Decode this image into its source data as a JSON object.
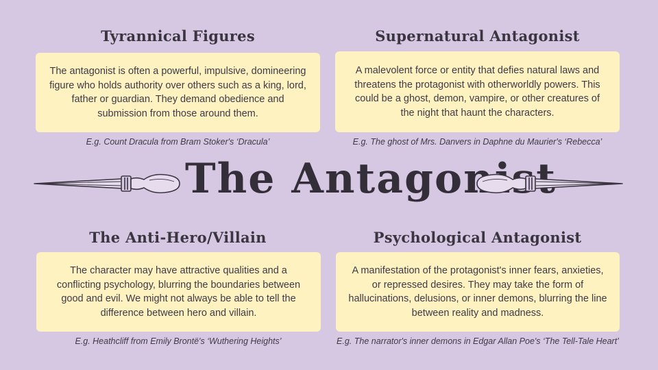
{
  "title": "The Antagonist",
  "sections": [
    {
      "heading": "Tyrannical Figures",
      "body": "The antagonist is often a powerful, impulsive, domineering figure who holds authority over others such as a king, lord, father or guardian. They demand obedience and submission from those around them.",
      "example": "E.g. Count Dracula from Bram Stoker's ‘Dracula’"
    },
    {
      "heading": "Supernatural Antagonist",
      "body": "A malevolent force or entity that defies natural laws and threatens the protagonist with otherworldly powers. This could be a ghost, demon, vampire, or other creatures of the night that haunt the characters.",
      "example": "E.g. The ghost of Mrs. Danvers in Daphne du Maurier's ‘Rebecca’"
    },
    {
      "heading": "The Anti-Hero/Villain",
      "body": "The character may have attractive qualities and  a conflicting psychology, blurring the boundaries between good and evil. We might not always be able to tell the difference between hero and villain.",
      "example": "E.g. Heathcliff from Emily Brontë's ‘Wuthering Heights’"
    },
    {
      "heading": "Psychological Antagonist",
      "body": "A manifestation of the protagonist's inner fears, anxieties, or repressed desires. They may take the form of hallucinations, delusions, or inner demons, blurring the line between reality and madness.",
      "example": "E.g. The narrator's inner demons in Edgar Allan Poe's ‘The Tell-Tale Heart’"
    }
  ],
  "colors": {
    "background": "#d6c8e2",
    "card": "#fef2c0",
    "text": "#3f3a46"
  },
  "icons": [
    "dagger-left-icon",
    "dagger-right-icon"
  ]
}
